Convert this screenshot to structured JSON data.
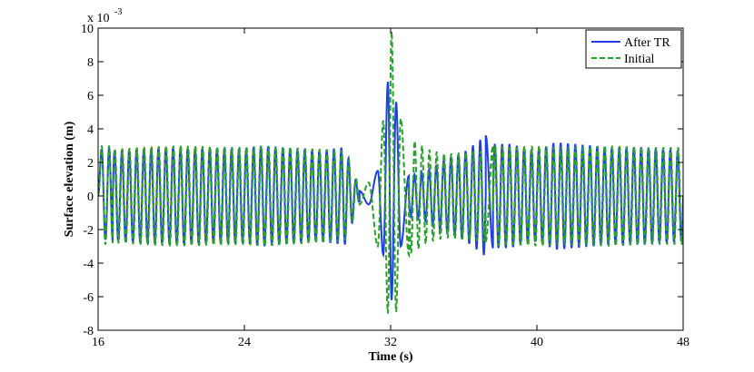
{
  "chart_data": {
    "type": "line",
    "title": "",
    "xlabel": "Time (s)",
    "ylabel": "Surface elevation (m)",
    "y_scale_note": {
      "base": "x 10",
      "exponent": "-3"
    },
    "xlim": [
      16,
      48
    ],
    "ylim": [
      -8,
      10
    ],
    "x_ticks": [
      16,
      24,
      32,
      40,
      48
    ],
    "y_ticks": [
      -8,
      -6,
      -4,
      -2,
      0,
      2,
      4,
      6,
      8,
      10
    ],
    "grid": false,
    "legend_position": "top-right",
    "series": [
      {
        "name": "After TR",
        "color": "#1f3fe0",
        "style": "solid",
        "points": [
          [
            16.0,
            0.0
          ],
          [
            16.2,
            2.8
          ],
          [
            16.4,
            -2.6
          ],
          [
            16.6,
            2.9
          ],
          [
            16.8,
            -2.7
          ],
          [
            20.0,
            2.9
          ],
          [
            24.0,
            -2.8
          ],
          [
            25.0,
            3.0
          ],
          [
            28.0,
            -2.7
          ],
          [
            29.5,
            2.9
          ],
          [
            30.3,
            0.3
          ],
          [
            30.8,
            -0.5
          ],
          [
            31.3,
            1.5
          ],
          [
            31.6,
            -3.5
          ],
          [
            31.85,
            6.8
          ],
          [
            32.05,
            -6.2
          ],
          [
            32.3,
            5.6
          ],
          [
            32.55,
            -3.0
          ],
          [
            33.0,
            1.2
          ],
          [
            34.0,
            -1.5
          ],
          [
            35.0,
            2.2
          ],
          [
            36.0,
            -2.6
          ],
          [
            37.2,
            3.6
          ],
          [
            37.6,
            -3.1
          ],
          [
            38.5,
            3.1
          ],
          [
            40.0,
            -2.7
          ],
          [
            41.0,
            3.2
          ],
          [
            44.0,
            -2.9
          ],
          [
            46.0,
            2.9
          ],
          [
            48.0,
            -2.7
          ]
        ]
      },
      {
        "name": "Initial",
        "color": "#2ca02c",
        "style": "dashed",
        "points": [
          [
            16.0,
            0.0
          ],
          [
            16.2,
            3.0
          ],
          [
            16.4,
            -2.9
          ],
          [
            16.6,
            3.0
          ],
          [
            16.8,
            -2.8
          ],
          [
            20.0,
            3.0
          ],
          [
            24.0,
            -2.9
          ],
          [
            25.0,
            3.0
          ],
          [
            28.0,
            -2.8
          ],
          [
            29.5,
            2.7
          ],
          [
            30.3,
            -0.5
          ],
          [
            30.8,
            0.8
          ],
          [
            31.3,
            -3.0
          ],
          [
            31.6,
            4.5
          ],
          [
            31.85,
            -7.0
          ],
          [
            32.05,
            9.8
          ],
          [
            32.3,
            -6.9
          ],
          [
            32.55,
            4.6
          ],
          [
            33.0,
            -3.5
          ],
          [
            34.0,
            2.8
          ],
          [
            35.0,
            -2.5
          ],
          [
            36.0,
            2.6
          ],
          [
            37.2,
            -2.7
          ],
          [
            37.6,
            3.0
          ],
          [
            38.5,
            -2.9
          ],
          [
            40.0,
            3.0
          ],
          [
            41.0,
            -2.9
          ],
          [
            44.0,
            3.0
          ],
          [
            46.0,
            -2.9
          ],
          [
            48.0,
            2.9
          ]
        ]
      }
    ]
  }
}
